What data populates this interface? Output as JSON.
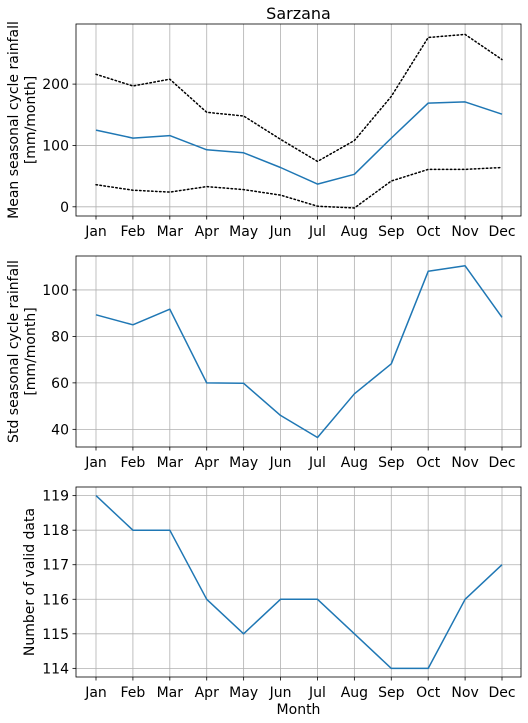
{
  "chart_data": [
    {
      "type": "line",
      "title": "Sarzana",
      "ylabel": [
        "Mean seasonal cycle rainfall",
        "[mm/month]"
      ],
      "xlabel": "",
      "categories": [
        "Jan",
        "Feb",
        "Mar",
        "Apr",
        "May",
        "Jun",
        "Jul",
        "Aug",
        "Sep",
        "Oct",
        "Nov",
        "Dec"
      ],
      "ylim": [
        -15,
        298
      ],
      "yticks": [
        0,
        100,
        200
      ],
      "grid": true,
      "series": [
        {
          "style": "solid",
          "color": "#1f77b4",
          "values": [
            125,
            112,
            116,
            93,
            88,
            64,
            37,
            53,
            112,
            169,
            171,
            151
          ]
        },
        {
          "style": "dotted",
          "color": "#000000",
          "values": [
            216,
            197,
            208,
            154,
            148,
            110,
            74,
            108,
            180,
            276,
            281,
            240
          ]
        },
        {
          "style": "dotted",
          "color": "#000000",
          "values": [
            36,
            27,
            24,
            33,
            28,
            19,
            1,
            -2,
            42,
            61,
            61,
            64
          ]
        }
      ]
    },
    {
      "type": "line",
      "title": "",
      "ylabel": [
        "Std seasonal cycle rainfall",
        "[mm/month]"
      ],
      "xlabel": "",
      "categories": [
        "Jan",
        "Feb",
        "Mar",
        "Apr",
        "May",
        "Jun",
        "Jul",
        "Aug",
        "Sep",
        "Oct",
        "Nov",
        "Dec"
      ],
      "ylim": [
        32.4,
        114.6
      ],
      "yticks": [
        40,
        60,
        80,
        100
      ],
      "grid": true,
      "series": [
        {
          "style": "solid",
          "color": "#1f77b4",
          "values": [
            89.3,
            85.0,
            91.7,
            60.0,
            59.8,
            46.0,
            36.5,
            55.3,
            68.2,
            108.0,
            110.4,
            88.2
          ]
        }
      ]
    },
    {
      "type": "line",
      "title": "",
      "ylabel": [
        "Number of valid data"
      ],
      "xlabel": "Month",
      "categories": [
        "Jan",
        "Feb",
        "Mar",
        "Apr",
        "May",
        "Jun",
        "Jul",
        "Aug",
        "Sep",
        "Oct",
        "Nov",
        "Dec"
      ],
      "ylim": [
        113.75,
        119.25
      ],
      "yticks": [
        114,
        115,
        116,
        117,
        118,
        119
      ],
      "grid": true,
      "series": [
        {
          "style": "solid",
          "color": "#1f77b4",
          "values": [
            119,
            118,
            118,
            116,
            115,
            116,
            116,
            115,
            114,
            114,
            116,
            117
          ]
        }
      ]
    }
  ]
}
